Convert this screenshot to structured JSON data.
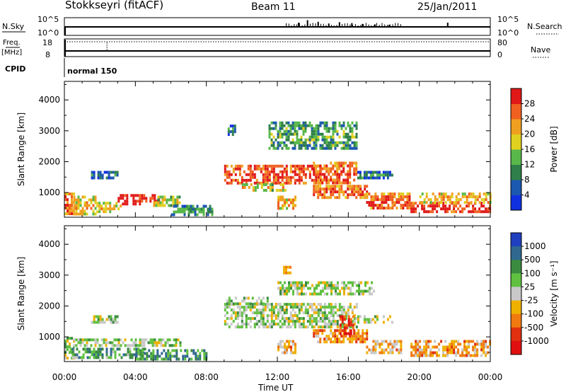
{
  "header": {
    "station": "Stokkseyri (fitACF)",
    "beam": "Beam 11",
    "date": "25/Jan/2011"
  },
  "top_panels": {
    "nsky_label": "N.Sky",
    "nsky_ticks": [
      "10^5",
      "10^0"
    ],
    "nsearch_label": "N.Search",
    "nsearch_ticks": [
      "10^5",
      "10^0"
    ],
    "freq_label": "Freq.",
    "freq_unit": "[MHz]",
    "freq_ticks": [
      "18",
      "8"
    ],
    "nave_label": "Nave",
    "nave_ticks": [
      "80",
      "0"
    ],
    "cpid_label": "CPID",
    "cpid_value": "normal 150"
  },
  "chart_data": [
    {
      "type": "heatmap",
      "name": "power",
      "ylabel": "Slant Range [km]",
      "y_ticks": [
        "1000",
        "2000",
        "3000",
        "4000"
      ],
      "ylim": [
        200,
        4600
      ],
      "x_ticks": [
        "00:00",
        "04:00",
        "08:00",
        "12:00",
        "16:00",
        "20:00",
        "00:00"
      ],
      "xlim_hours": [
        0,
        24
      ],
      "colorbar": {
        "label": "Power [dB]",
        "ticks": [
          "4",
          "8",
          "12",
          "16",
          "20",
          "24",
          "28"
        ],
        "colors": [
          "#1030e0",
          "#1c58b0",
          "#2f7f4a",
          "#58b84a",
          "#e0d020",
          "#f0a020",
          "#f06020",
          "#e01818"
        ]
      },
      "regions": [
        {
          "t0": 0.0,
          "t1": 0.5,
          "r0": 300,
          "r1": 1000,
          "level": 0.7
        },
        {
          "t0": 0.5,
          "t1": 1.8,
          "r0": 300,
          "r1": 900,
          "level": 0.55
        },
        {
          "t0": 1.8,
          "t1": 3.2,
          "r0": 350,
          "r1": 700,
          "level": 0.5
        },
        {
          "t0": 3.0,
          "t1": 5.3,
          "r0": 650,
          "r1": 950,
          "level": 0.9
        },
        {
          "t0": 5.0,
          "t1": 6.5,
          "r0": 600,
          "r1": 900,
          "level": 0.45
        },
        {
          "t0": 1.5,
          "t1": 3.0,
          "r0": 1500,
          "r1": 1700,
          "level": 0.2
        },
        {
          "t0": 6.0,
          "t1": 8.3,
          "r0": 300,
          "r1": 600,
          "level": 0.25
        },
        {
          "t0": 9.0,
          "t1": 14.5,
          "r0": 1300,
          "r1": 1900,
          "level": 0.8
        },
        {
          "t0": 14.0,
          "t1": 16.5,
          "r0": 1300,
          "r1": 2000,
          "level": 0.75
        },
        {
          "t0": 10.0,
          "t1": 12.5,
          "r0": 1100,
          "r1": 1300,
          "level": 0.5
        },
        {
          "t0": 11.5,
          "t1": 16.5,
          "r0": 2400,
          "r1": 3300,
          "level": 0.3
        },
        {
          "t0": 12.0,
          "t1": 13.0,
          "r0": 500,
          "r1": 900,
          "level": 0.6
        },
        {
          "t0": 14.0,
          "t1": 17.0,
          "r0": 850,
          "r1": 1250,
          "level": 0.7
        },
        {
          "t0": 16.5,
          "t1": 18.5,
          "r0": 1500,
          "r1": 1700,
          "level": 0.2
        },
        {
          "t0": 17.0,
          "t1": 19.5,
          "r0": 500,
          "r1": 1000,
          "level": 0.75
        },
        {
          "t0": 19.5,
          "t1": 24.0,
          "r0": 350,
          "r1": 700,
          "level": 0.85
        },
        {
          "t0": 20.0,
          "t1": 24.0,
          "r0": 700,
          "r1": 1000,
          "level": 0.6
        },
        {
          "t0": 9.2,
          "t1": 9.6,
          "r0": 2900,
          "r1": 3200,
          "level": 0.2
        }
      ]
    },
    {
      "type": "heatmap",
      "name": "velocity",
      "ylabel": "Slant Range [km]",
      "y_ticks": [
        "1000",
        "2000",
        "3000",
        "4000"
      ],
      "ylim": [
        200,
        4600
      ],
      "x_ticks": [
        "00:00",
        "04:00",
        "08:00",
        "12:00",
        "16:00",
        "20:00",
        "00:00"
      ],
      "xlim_hours": [
        0,
        24
      ],
      "xlabel": "Time UT",
      "colorbar": {
        "label": "Velocity [m s⁻¹]",
        "ticks": [
          "1000",
          "500",
          "100",
          "25",
          "-25",
          "-100",
          "-500",
          "-1000"
        ],
        "colors": [
          "#2040c0",
          "#306890",
          "#3a8a40",
          "#60c040",
          "#c8c8c8",
          "#f0b000",
          "#f07a10",
          "#e03010",
          "#e01010"
        ]
      },
      "regions": [
        {
          "t0": 0.0,
          "t1": 0.5,
          "r0": 300,
          "r1": 1000,
          "level": 0.4
        },
        {
          "t0": 0.5,
          "t1": 6.5,
          "r0": 700,
          "r1": 950,
          "level": 0.45
        },
        {
          "t0": 0.3,
          "t1": 4.5,
          "r0": 300,
          "r1": 650,
          "level": 0.3
        },
        {
          "t0": 4.0,
          "t1": 8.0,
          "r0": 300,
          "r1": 600,
          "level": 0.25
        },
        {
          "t0": 1.5,
          "t1": 3.0,
          "r0": 1500,
          "r1": 1700,
          "level": 0.45
        },
        {
          "t0": 9.0,
          "t1": 16.5,
          "r0": 1300,
          "r1": 2100,
          "level": 0.45
        },
        {
          "t0": 12.0,
          "t1": 17.5,
          "r0": 2400,
          "r1": 2800,
          "level": 0.45
        },
        {
          "t0": 12.0,
          "t1": 13.0,
          "r0": 500,
          "r1": 900,
          "level": 0.65
        },
        {
          "t0": 14.0,
          "t1": 17.0,
          "r0": 850,
          "r1": 1250,
          "level": 0.7
        },
        {
          "t0": 15.5,
          "t1": 16.3,
          "r0": 1100,
          "r1": 1700,
          "level": 0.9
        },
        {
          "t0": 16.5,
          "t1": 18.5,
          "r0": 1500,
          "r1": 1700,
          "level": 0.45
        },
        {
          "t0": 17.0,
          "t1": 19.0,
          "r0": 500,
          "r1": 900,
          "level": 0.65
        },
        {
          "t0": 19.5,
          "t1": 24.0,
          "r0": 350,
          "r1": 900,
          "level": 0.68
        },
        {
          "t0": 12.2,
          "t1": 12.7,
          "r0": 3100,
          "r1": 3300,
          "level": 0.7
        },
        {
          "t0": 9.0,
          "t1": 11.5,
          "r0": 2100,
          "r1": 2300,
          "level": 0.45
        }
      ]
    }
  ],
  "time_series": {
    "nsky_spikes_hours": [
      13.2,
      13.7,
      14.3,
      14.9,
      15.5,
      16.2,
      16.8,
      17.5,
      18.3,
      21.6
    ],
    "nsky_spike_levels": [
      0.5,
      0.8,
      0.6,
      0.4,
      0.55,
      0.45,
      0.35,
      0.3,
      0.25,
      0.5
    ],
    "freq_blip_hours": 2.4
  }
}
